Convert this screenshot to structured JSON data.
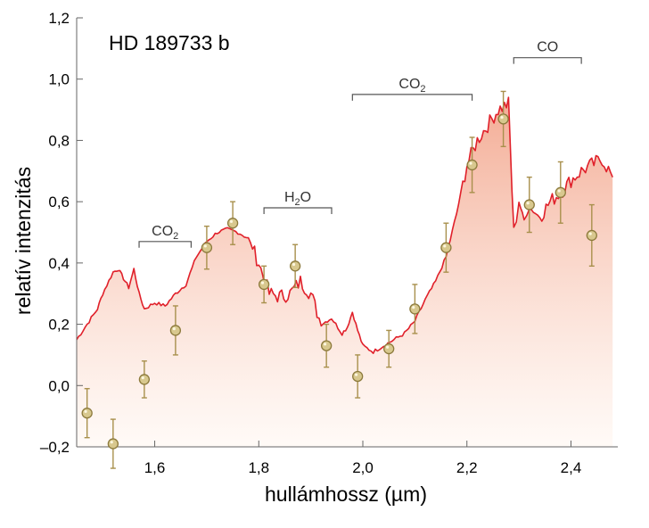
{
  "chart_data": {
    "type": "line",
    "title": "HD 189733 b",
    "xlabel": "hullámhossz (µm)",
    "ylabel": "relatív intenzitás",
    "xlim": [
      1.45,
      2.49
    ],
    "ylim": [
      -0.2,
      1.2
    ],
    "x_ticks": [
      1.6,
      1.8,
      2.0,
      2.2,
      2.4
    ],
    "x_tick_labels": [
      "1,6",
      "1,8",
      "2,0",
      "2,2",
      "2,4"
    ],
    "y_ticks": [
      -0.2,
      0.0,
      0.2,
      0.4,
      0.6,
      0.8,
      1.0,
      1.2
    ],
    "y_tick_labels": [
      "–0,2",
      "0,0",
      "0,2",
      "0,4",
      "0,6",
      "0,8",
      "1,0",
      "1,2"
    ],
    "grid": false,
    "colors": {
      "model_line": "#e0202a",
      "model_fill_top": "#f2a288",
      "model_fill_bottom": "#fff6f0",
      "point_fill": "#d8c88e",
      "point_stroke": "#8c7a3c",
      "error_bar": "#a8904c",
      "bracket": "#555555",
      "axis": "#666666"
    },
    "annotations": [
      {
        "text": "CO",
        "sub": "2",
        "x_start": 1.57,
        "x_end": 1.67,
        "y": 0.47
      },
      {
        "text": "H",
        "sub": "2",
        "tail": "O",
        "x_start": 1.81,
        "x_end": 1.94,
        "y": 0.58
      },
      {
        "text": "CO",
        "sub": "2",
        "x_start": 1.98,
        "x_end": 2.21,
        "y": 0.95
      },
      {
        "text": "CO",
        "sub": "",
        "x_start": 2.29,
        "x_end": 2.42,
        "y": 1.07
      }
    ],
    "series": [
      {
        "type": "line",
        "x": [
          1.45,
          1.47,
          1.49,
          1.5,
          1.52,
          1.53,
          1.54,
          1.55,
          1.56,
          1.57,
          1.58,
          1.6,
          1.62,
          1.64,
          1.66,
          1.68,
          1.7,
          1.72,
          1.74,
          1.76,
          1.78,
          1.8,
          1.82,
          1.84,
          1.86,
          1.88,
          1.9,
          1.92,
          1.94,
          1.96,
          1.97,
          1.98,
          1.99,
          2.0,
          2.02,
          2.04,
          2.06,
          2.08,
          2.1,
          2.12,
          2.14,
          2.16,
          2.18,
          2.2,
          2.22,
          2.24,
          2.26,
          2.28,
          2.29,
          2.3,
          2.31,
          2.32,
          2.34,
          2.36,
          2.38,
          2.4,
          2.42,
          2.44,
          2.46,
          2.48
        ],
        "y": [
          0.15,
          0.2,
          0.25,
          0.3,
          0.37,
          0.38,
          0.35,
          0.32,
          0.38,
          0.3,
          0.25,
          0.27,
          0.26,
          0.3,
          0.33,
          0.42,
          0.47,
          0.5,
          0.51,
          0.5,
          0.48,
          0.4,
          0.3,
          0.29,
          0.3,
          0.34,
          0.3,
          0.2,
          0.22,
          0.17,
          0.19,
          0.24,
          0.18,
          0.13,
          0.11,
          0.13,
          0.15,
          0.17,
          0.21,
          0.28,
          0.34,
          0.42,
          0.56,
          0.72,
          0.8,
          0.85,
          0.9,
          0.92,
          0.5,
          0.6,
          0.54,
          0.58,
          0.55,
          0.6,
          0.63,
          0.67,
          0.7,
          0.72,
          0.74,
          0.68
        ]
      },
      {
        "type": "scatter_with_error",
        "x": [
          1.47,
          1.52,
          1.58,
          1.64,
          1.7,
          1.75,
          1.81,
          1.87,
          1.93,
          1.99,
          2.05,
          2.1,
          2.16,
          2.21,
          2.27,
          2.32,
          2.38,
          2.44
        ],
        "y": [
          -0.09,
          -0.19,
          0.02,
          0.18,
          0.45,
          0.53,
          0.33,
          0.39,
          0.13,
          0.03,
          0.12,
          0.25,
          0.45,
          0.72,
          0.87,
          0.59,
          0.63,
          0.49
        ],
        "err": [
          0.08,
          0.08,
          0.06,
          0.08,
          0.07,
          0.07,
          0.06,
          0.07,
          0.07,
          0.07,
          0.06,
          0.08,
          0.08,
          0.09,
          0.09,
          0.09,
          0.1,
          0.1
        ]
      }
    ]
  }
}
